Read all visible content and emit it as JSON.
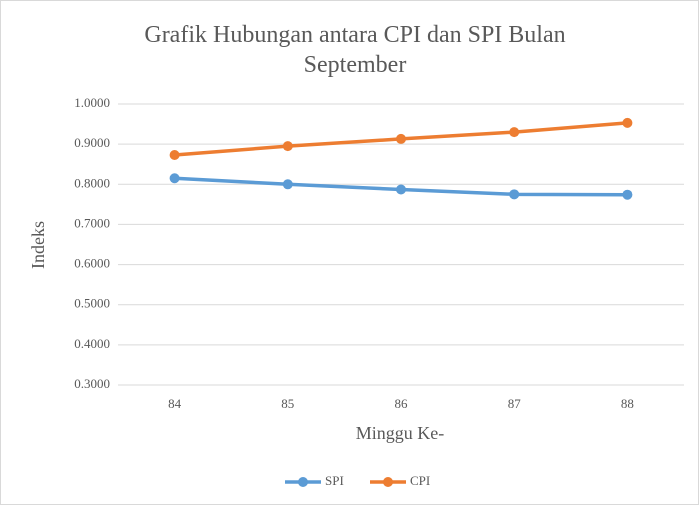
{
  "chart_data": {
    "type": "line",
    "title": "Grafik Hubungan antara CPI dan SPI Bulan September",
    "x_label": "Minggu Ke-",
    "y_label": "Indeks",
    "categories": [
      "84",
      "85",
      "86",
      "87",
      "88"
    ],
    "series": [
      {
        "name": "SPI",
        "color": "#5b9bd5",
        "values": [
          0.815,
          0.8,
          0.787,
          0.775,
          0.774
        ]
      },
      {
        "name": "CPI",
        "color": "#ed7d31",
        "values": [
          0.873,
          0.895,
          0.913,
          0.93,
          0.953
        ]
      }
    ],
    "ylim": [
      0.3,
      1.0
    ],
    "yticks": [
      {
        "value": 0.3,
        "label": "0.3000"
      },
      {
        "value": 0.4,
        "label": "0.4000"
      },
      {
        "value": 0.5,
        "label": "0.5000"
      },
      {
        "value": 0.6,
        "label": "0.6000"
      },
      {
        "value": 0.7,
        "label": "0.7000"
      },
      {
        "value": 0.8,
        "label": "0.8000"
      },
      {
        "value": 0.9,
        "label": "0.9000"
      },
      {
        "value": 1.0,
        "label": "1.0000"
      }
    ],
    "grid": true,
    "legend": "bottom"
  }
}
